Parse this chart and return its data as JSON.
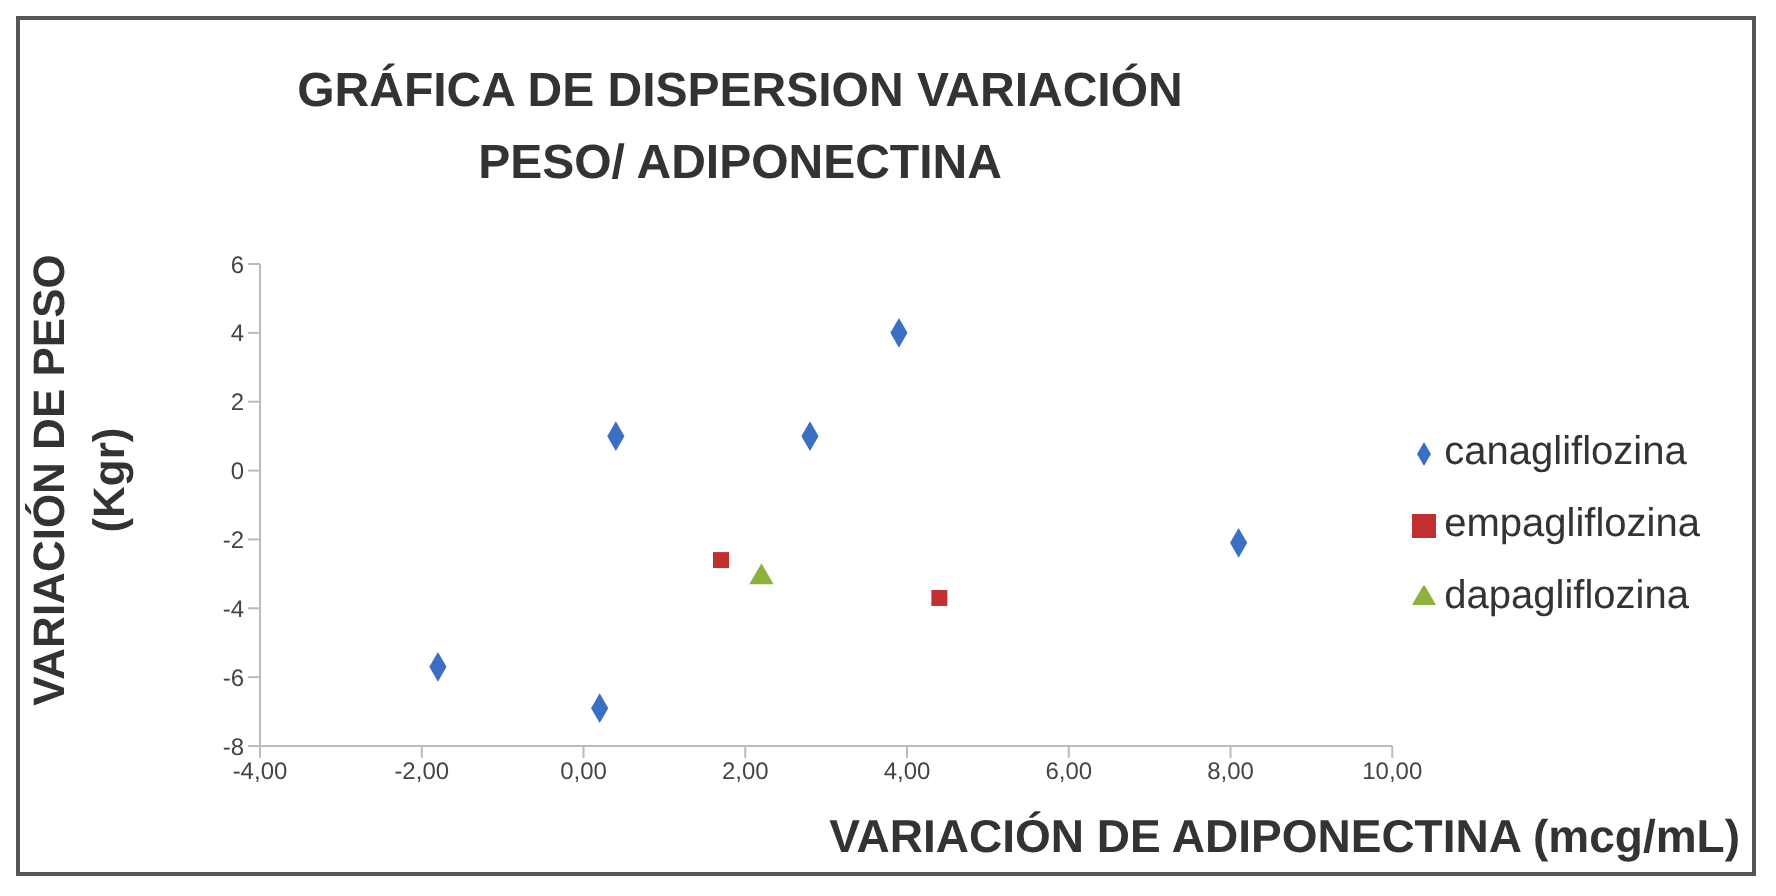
{
  "chart_data": {
    "type": "scatter",
    "title": "GRÁFICA DE DISPERSION VARIACIÓN PESO/ ADIPONECTINA",
    "xlabel": "VARIACIÓN DE ADIPONECTINA (mcg/mL)",
    "ylabel": "VARIACIÓN DE PESO (Kgr)",
    "xlim": [
      -4,
      10
    ],
    "xticks": [
      {
        "value": -4,
        "label": "-4,00"
      },
      {
        "value": -2,
        "label": "-2,00"
      },
      {
        "value": 0,
        "label": "0,00"
      },
      {
        "value": 2,
        "label": "2,00"
      },
      {
        "value": 4,
        "label": "4,00"
      },
      {
        "value": 6,
        "label": "6,00"
      },
      {
        "value": 8,
        "label": "8,00"
      },
      {
        "value": 10,
        "label": "10,00"
      }
    ],
    "ylim": [
      -8,
      6
    ],
    "yticks": [
      -8,
      -6,
      -4,
      -2,
      0,
      2,
      4,
      6
    ],
    "grid": false,
    "legend": "right",
    "series": [
      {
        "name": "canagliflozina",
        "color": "#3a6fc4",
        "marker": "diamond",
        "x": [
          0.4,
          2.8,
          3.9,
          8.1,
          -1.8,
          0.2
        ],
        "values": [
          1,
          1,
          4,
          -2.1,
          -5.7,
          -6.9
        ]
      },
      {
        "name": "empagliflozina",
        "color": "#c0302e",
        "marker": "square",
        "x": [
          1.7,
          4.4
        ],
        "values": [
          -2.6,
          -3.7
        ]
      },
      {
        "name": "dapagliflozina",
        "color": "#8bb33a",
        "marker": "triangle",
        "x": [
          2.2
        ],
        "values": [
          -3.1
        ]
      }
    ]
  }
}
